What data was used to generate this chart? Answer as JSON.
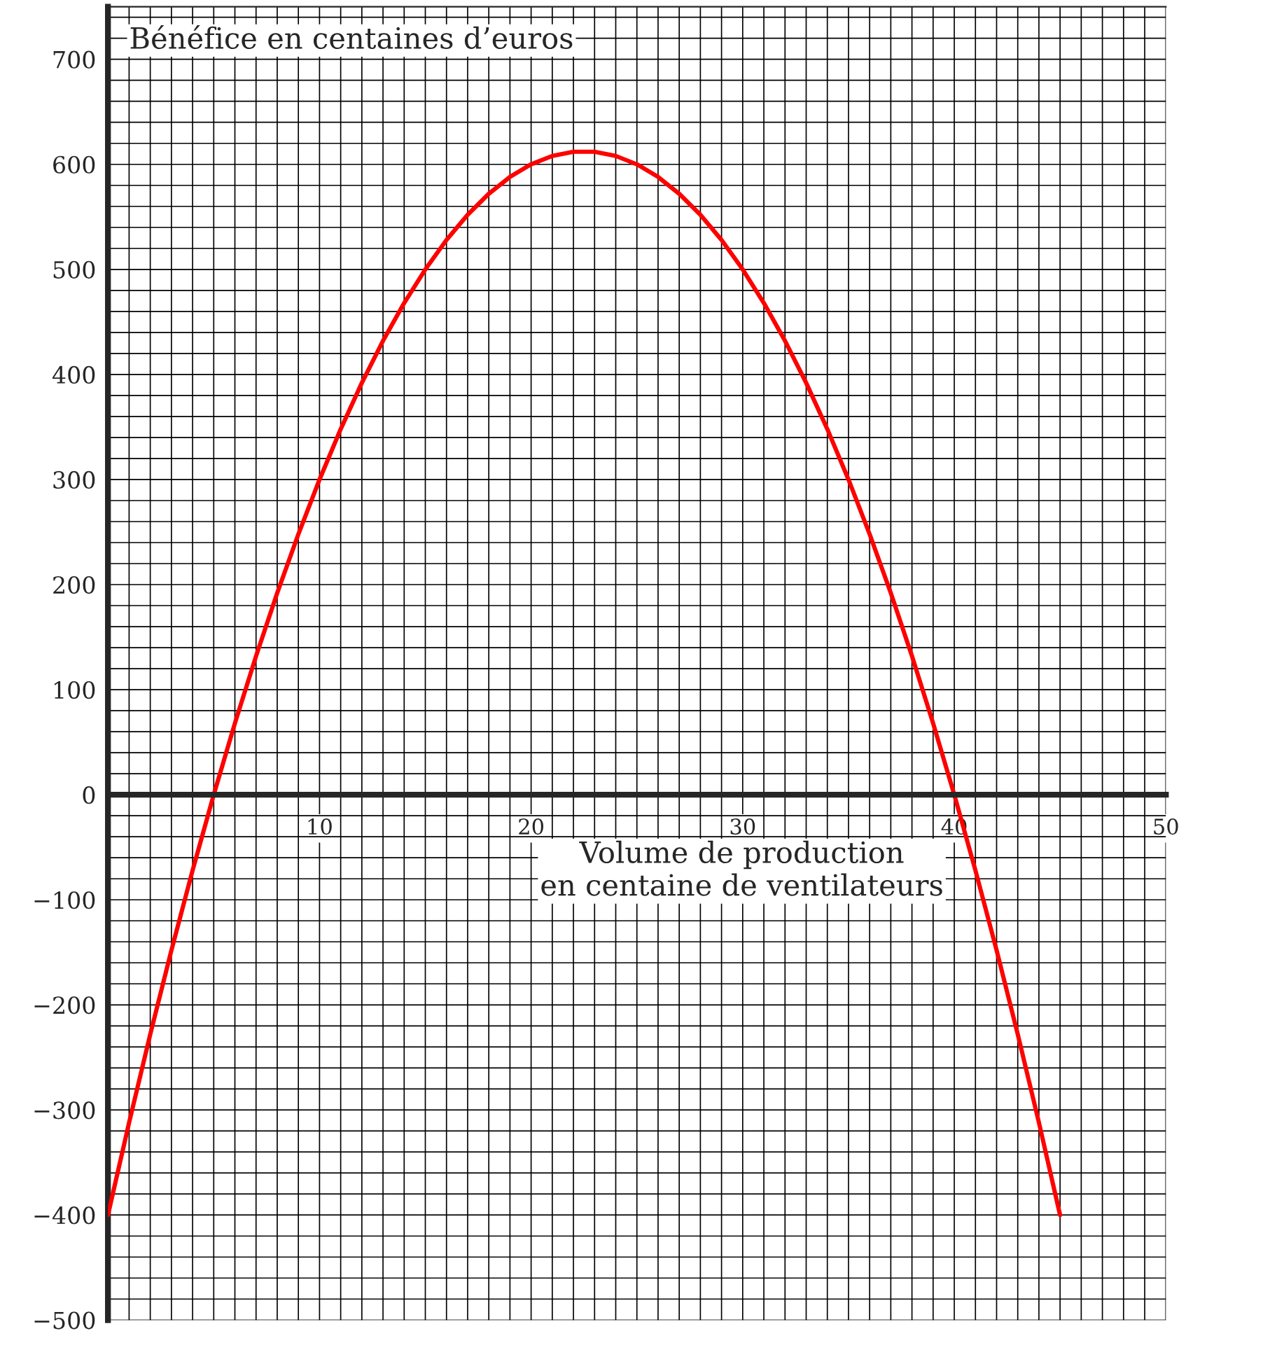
{
  "chart_data": {
    "type": "line",
    "xlabel": "Volume de production\nen centaine de ventilateurs",
    "ylabel": "Bénéfice en centaines d’euros",
    "x": [
      0,
      1,
      2,
      3,
      4,
      5,
      6,
      7,
      8,
      9,
      10,
      11,
      12,
      13,
      14,
      15,
      16,
      17,
      18,
      19,
      20,
      21,
      22,
      23,
      24,
      25,
      26,
      27,
      28,
      29,
      30,
      31,
      32,
      33,
      34,
      35,
      36,
      37,
      38,
      39,
      40,
      41,
      42,
      43,
      44,
      45
    ],
    "series": [
      {
        "color": "#ff0000",
        "values": [
          -400,
          -312,
          -228,
          -148,
          -72,
          0,
          68,
          132,
          192,
          248,
          300,
          348,
          392,
          432,
          468,
          500,
          528,
          552,
          572,
          588,
          600,
          608,
          612,
          612,
          608,
          600,
          588,
          572,
          552,
          528,
          500,
          468,
          432,
          392,
          348,
          300,
          248,
          192,
          132,
          68,
          0,
          -72,
          -148,
          -228,
          -312,
          -400
        ]
      }
    ],
    "xlim": [
      0,
      50
    ],
    "ylim": [
      -500,
      750
    ],
    "xticks": [
      10,
      20,
      30,
      40,
      50
    ],
    "yticks": [
      {
        "value": -500,
        "label": "−500"
      },
      {
        "value": -400,
        "label": "−400"
      },
      {
        "value": -300,
        "label": "−300"
      },
      {
        "value": -200,
        "label": "−200"
      },
      {
        "value": -100,
        "label": "−100"
      },
      0,
      100,
      200,
      300,
      400,
      500,
      600,
      700
    ],
    "grid": true,
    "marker": "none",
    "line_style": "solid"
  }
}
